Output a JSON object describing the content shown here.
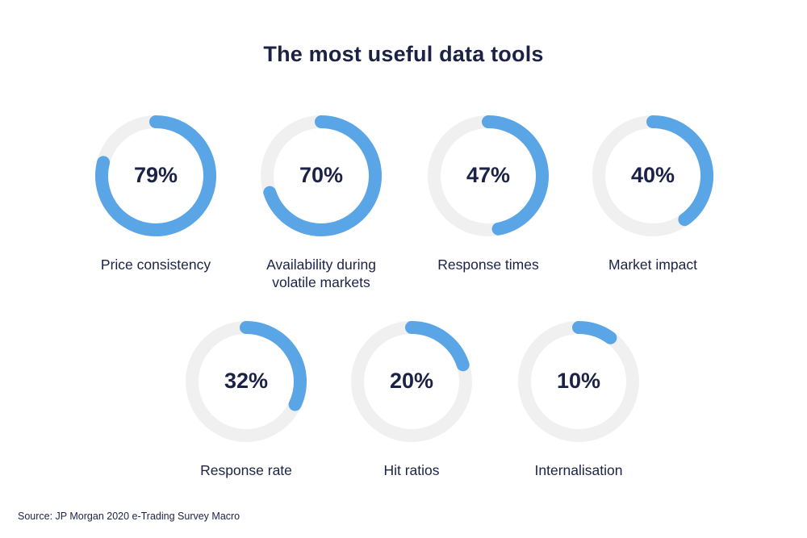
{
  "title": "The most useful data tools",
  "source": "Source: JP Morgan 2020 e-Trading Survey Macro",
  "colors": {
    "accent": "#5aa5e6",
    "track": "#f0f0f0",
    "text": "#1b2245"
  },
  "chart_data": {
    "type": "pie",
    "title": "The most useful data tools",
    "subtype": "donut-gauges",
    "unit": "%",
    "categories": [
      "Price consistency",
      "Availability during volatile markets",
      "Response times",
      "Market impact",
      "Response rate",
      "Hit ratios",
      "Internalisation"
    ],
    "values": [
      79,
      70,
      47,
      40,
      32,
      20,
      10
    ],
    "value_labels": [
      "79%",
      "70%",
      "47%",
      "40%",
      "32%",
      "20%",
      "10%"
    ],
    "display_labels": [
      "Price consistency",
      "Availability during\nvolatile markets",
      "Response times",
      "Market impact",
      "Response rate",
      "Hit ratios",
      "Internalisation"
    ],
    "max": 100,
    "legend": "none"
  }
}
